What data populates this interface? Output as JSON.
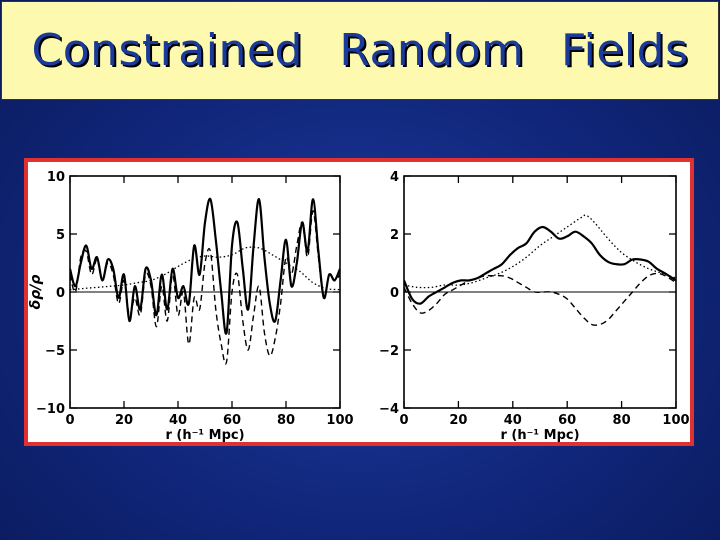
{
  "slide": {
    "title": "Constrained Random Fields",
    "colors": {
      "title_bg": "#fdfab0",
      "title_text": "#1a3a9a",
      "frame_border": "#e03030",
      "background": "#10267a"
    }
  },
  "chart_data": [
    {
      "type": "line",
      "title": "",
      "xlabel": "r  (h⁻¹ Mpc)",
      "ylabel": "δρ/ρ",
      "xlim": [
        0,
        100
      ],
      "ylim": [
        -10,
        10
      ],
      "xticks": [
        "0",
        "20",
        "40",
        "60",
        "80",
        "100"
      ],
      "yticks": [
        "10",
        "5",
        "0",
        "−5",
        "−10"
      ],
      "series": [
        {
          "style": "solid",
          "x": [
            0,
            2,
            4,
            6,
            8,
            10,
            12,
            14,
            16,
            18,
            20,
            22,
            24,
            26,
            28,
            30,
            32,
            34,
            36,
            38,
            40,
            42,
            44,
            46,
            48,
            50,
            52,
            54,
            56,
            58,
            60,
            62,
            64,
            66,
            68,
            70,
            72,
            74,
            76,
            78,
            80,
            82,
            84,
            86,
            88,
            90,
            92,
            94,
            96,
            98,
            100
          ],
          "values": [
            2.0,
            0.5,
            2.5,
            4.0,
            2.0,
            3.0,
            1.0,
            2.8,
            2.0,
            -0.5,
            1.5,
            -2.5,
            0.5,
            -1.5,
            2.0,
            1.0,
            -2.0,
            1.5,
            -1.5,
            2.0,
            -0.5,
            0.5,
            -1.0,
            4.0,
            1.5,
            6.0,
            8.0,
            4.5,
            0.0,
            -3.5,
            4.0,
            6.0,
            2.0,
            -1.5,
            4.0,
            8.0,
            3.0,
            -1.0,
            -2.5,
            1.0,
            4.5,
            0.5,
            2.5,
            6.0,
            3.5,
            8.0,
            3.5,
            -0.5,
            1.5,
            1.0,
            2.0
          ]
        },
        {
          "style": "dashed",
          "x": [
            0,
            2,
            4,
            6,
            8,
            10,
            12,
            14,
            16,
            18,
            20,
            22,
            24,
            26,
            28,
            30,
            32,
            34,
            36,
            38,
            40,
            42,
            44,
            46,
            48,
            50,
            52,
            54,
            56,
            58,
            60,
            62,
            64,
            66,
            68,
            70,
            72,
            74,
            76,
            78,
            80,
            82,
            84,
            86,
            88,
            90,
            92,
            94,
            96,
            98,
            100
          ],
          "values": [
            1.5,
            0.0,
            3.0,
            3.5,
            1.5,
            2.8,
            1.0,
            2.5,
            1.5,
            -1.0,
            1.0,
            -2.0,
            -0.5,
            -2.0,
            1.5,
            0.5,
            -3.0,
            0.5,
            -2.5,
            1.5,
            -2.0,
            0.0,
            -4.5,
            -0.5,
            -1.5,
            2.5,
            3.5,
            -1.5,
            -4.5,
            -6.0,
            0.0,
            1.5,
            -2.5,
            -5.0,
            -2.0,
            0.5,
            -3.5,
            -5.5,
            -4.0,
            -1.0,
            3.0,
            1.5,
            4.0,
            6.0,
            3.0,
            7.0,
            3.0,
            -0.5,
            1.5,
            1.0,
            1.5
          ]
        },
        {
          "style": "dotted",
          "x": [
            0,
            5,
            10,
            15,
            20,
            25,
            30,
            35,
            40,
            45,
            50,
            55,
            60,
            65,
            70,
            75,
            80,
            85,
            90,
            95,
            100
          ],
          "values": [
            0.2,
            0.3,
            0.4,
            0.5,
            0.6,
            0.8,
            1.0,
            1.5,
            2.2,
            2.8,
            3.1,
            3.0,
            3.2,
            3.8,
            3.8,
            3.2,
            2.5,
            1.8,
            0.8,
            0.3,
            0.2
          ]
        },
        {
          "style": "thin",
          "x": [
            0,
            100
          ],
          "values": [
            0,
            0
          ]
        }
      ]
    },
    {
      "type": "line",
      "title": "",
      "xlabel": "r  (h⁻¹ Mpc)",
      "ylabel": "",
      "xlim": [
        0,
        100
      ],
      "ylim": [
        -5,
        5
      ],
      "xticks": [
        "0",
        "20",
        "40",
        "60",
        "80",
        "100"
      ],
      "yticks": [
        "4",
        "2",
        "0",
        "−2",
        "−4"
      ],
      "series": [
        {
          "style": "solid",
          "x": [
            0,
            3,
            6,
            9,
            12,
            15,
            18,
            21,
            24,
            27,
            30,
            33,
            36,
            39,
            42,
            45,
            48,
            51,
            54,
            57,
            60,
            63,
            66,
            69,
            72,
            75,
            78,
            81,
            84,
            87,
            90,
            93,
            96,
            100
          ],
          "values": [
            0.5,
            -0.3,
            -0.5,
            -0.2,
            0.0,
            0.2,
            0.4,
            0.5,
            0.5,
            0.6,
            0.8,
            1.0,
            1.2,
            1.6,
            1.9,
            2.1,
            2.6,
            2.8,
            2.6,
            2.3,
            2.4,
            2.6,
            2.4,
            2.1,
            1.6,
            1.3,
            1.2,
            1.2,
            1.4,
            1.4,
            1.3,
            1.0,
            0.8,
            0.5
          ]
        },
        {
          "style": "dashed",
          "x": [
            0,
            3,
            6,
            9,
            12,
            15,
            18,
            21,
            24,
            27,
            30,
            33,
            36,
            39,
            42,
            45,
            48,
            51,
            54,
            57,
            60,
            63,
            66,
            69,
            72,
            75,
            78,
            81,
            84,
            87,
            90,
            93,
            96,
            100
          ],
          "values": [
            0.2,
            -0.5,
            -0.9,
            -0.8,
            -0.5,
            -0.1,
            0.1,
            0.3,
            0.5,
            0.6,
            0.7,
            0.7,
            0.7,
            0.6,
            0.4,
            0.2,
            0.0,
            0.0,
            0.0,
            -0.1,
            -0.3,
            -0.7,
            -1.1,
            -1.4,
            -1.4,
            -1.2,
            -0.8,
            -0.4,
            0.0,
            0.4,
            0.7,
            0.8,
            0.7,
            0.4
          ]
        },
        {
          "style": "dotted",
          "x": [
            0,
            5,
            10,
            15,
            20,
            25,
            30,
            35,
            40,
            45,
            50,
            55,
            60,
            65,
            67,
            70,
            75,
            80,
            85,
            90,
            95,
            100
          ],
          "values": [
            0.3,
            0.2,
            0.2,
            0.3,
            0.3,
            0.4,
            0.6,
            0.8,
            1.1,
            1.5,
            2.0,
            2.4,
            2.8,
            3.2,
            3.3,
            3.0,
            2.3,
            1.7,
            1.3,
            1.0,
            0.8,
            0.6
          ]
        },
        {
          "style": "thin",
          "x": [
            0,
            100
          ],
          "values": [
            0,
            0
          ]
        }
      ]
    }
  ]
}
